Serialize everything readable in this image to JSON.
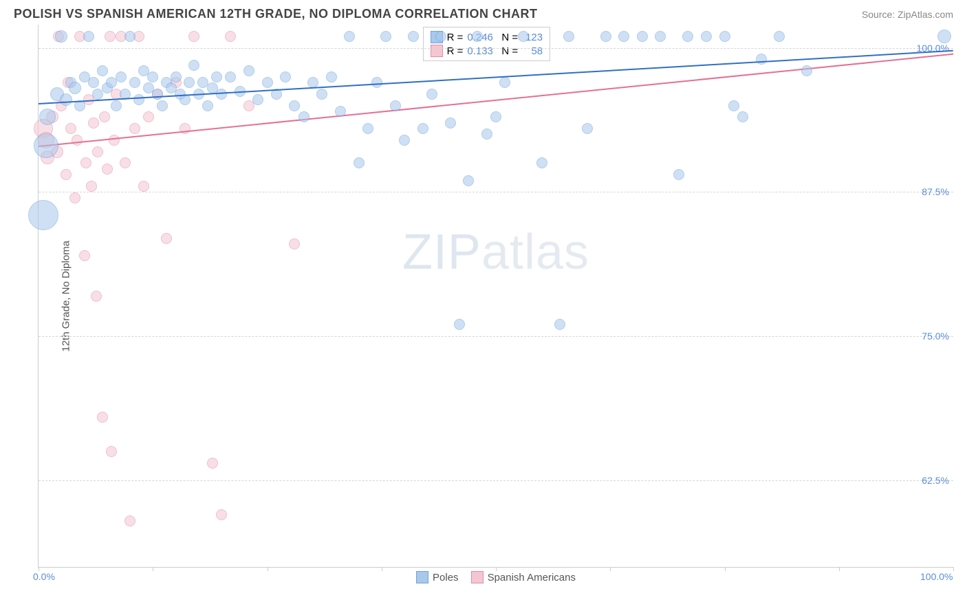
{
  "title": "POLISH VS SPANISH AMERICAN 12TH GRADE, NO DIPLOMA CORRELATION CHART",
  "source_label": "Source: ZipAtlas.com",
  "y_axis_label": "12th Grade, No Diploma",
  "watermark": "ZIPatlas",
  "chart": {
    "type": "scatter",
    "xlim": [
      0,
      100
    ],
    "ylim": [
      55,
      102
    ],
    "y_ticks": [
      {
        "v": 62.5,
        "label": "62.5%"
      },
      {
        "v": 75.0,
        "label": "75.0%"
      },
      {
        "v": 87.5,
        "label": "87.5%"
      },
      {
        "v": 100.0,
        "label": "100.0%"
      }
    ],
    "x_tick_positions": [
      0,
      12.5,
      25,
      37.5,
      50,
      62.5,
      75,
      87.5,
      100
    ],
    "x_labels": [
      {
        "v": 0,
        "label": "0.0%"
      },
      {
        "v": 100,
        "label": "100.0%"
      }
    ],
    "background_color": "#ffffff",
    "grid_color": "#d5d5d5",
    "series": {
      "poles": {
        "label": "Poles",
        "fill": "#a9c8ec",
        "stroke": "#6fa3dd",
        "fill_opacity": 0.55,
        "trend": {
          "color": "#2f6fc4",
          "y_at_x0": 95.2,
          "y_at_x100": 99.8,
          "width": 2
        },
        "stats": {
          "R_label": "R =",
          "R": "0.246",
          "N_label": "N =",
          "N": "123"
        },
        "points": [
          {
            "x": 0.5,
            "y": 85.5,
            "r": 22
          },
          {
            "x": 0.8,
            "y": 91.5,
            "r": 18
          },
          {
            "x": 1,
            "y": 94,
            "r": 12
          },
          {
            "x": 2,
            "y": 96,
            "r": 10
          },
          {
            "x": 2.5,
            "y": 101,
            "r": 9
          },
          {
            "x": 3,
            "y": 95.5,
            "r": 9
          },
          {
            "x": 3.5,
            "y": 97,
            "r": 8
          },
          {
            "x": 4,
            "y": 96.5,
            "r": 9
          },
          {
            "x": 4.5,
            "y": 95,
            "r": 8
          },
          {
            "x": 5,
            "y": 97.5,
            "r": 8
          },
          {
            "x": 5.5,
            "y": 101,
            "r": 8
          },
          {
            "x": 6,
            "y": 97,
            "r": 8
          },
          {
            "x": 6.5,
            "y": 96,
            "r": 8
          },
          {
            "x": 7,
            "y": 98,
            "r": 8
          },
          {
            "x": 7.5,
            "y": 96.5,
            "r": 8
          },
          {
            "x": 8,
            "y": 97,
            "r": 8
          },
          {
            "x": 8.5,
            "y": 95,
            "r": 8
          },
          {
            "x": 9,
            "y": 97.5,
            "r": 8
          },
          {
            "x": 9.5,
            "y": 96,
            "r": 8
          },
          {
            "x": 10,
            "y": 101,
            "r": 8
          },
          {
            "x": 10.5,
            "y": 97,
            "r": 8
          },
          {
            "x": 11,
            "y": 95.5,
            "r": 8
          },
          {
            "x": 11.5,
            "y": 98,
            "r": 8
          },
          {
            "x": 12,
            "y": 96.5,
            "r": 8
          },
          {
            "x": 12.5,
            "y": 97.5,
            "r": 8
          },
          {
            "x": 13,
            "y": 96,
            "r": 8
          },
          {
            "x": 13.5,
            "y": 95,
            "r": 8
          },
          {
            "x": 14,
            "y": 97,
            "r": 8
          },
          {
            "x": 14.5,
            "y": 96.5,
            "r": 8
          },
          {
            "x": 15,
            "y": 97.5,
            "r": 8
          },
          {
            "x": 15.5,
            "y": 96,
            "r": 8
          },
          {
            "x": 16,
            "y": 95.5,
            "r": 8
          },
          {
            "x": 16.5,
            "y": 97,
            "r": 8
          },
          {
            "x": 17,
            "y": 98.5,
            "r": 8
          },
          {
            "x": 17.5,
            "y": 96,
            "r": 8
          },
          {
            "x": 18,
            "y": 97,
            "r": 8
          },
          {
            "x": 18.5,
            "y": 95,
            "r": 8
          },
          {
            "x": 19,
            "y": 96.5,
            "r": 8
          },
          {
            "x": 19.5,
            "y": 97.5,
            "r": 8
          },
          {
            "x": 20,
            "y": 96,
            "r": 8
          },
          {
            "x": 21,
            "y": 97.5,
            "r": 8
          },
          {
            "x": 22,
            "y": 96.2,
            "r": 8
          },
          {
            "x": 23,
            "y": 98,
            "r": 8
          },
          {
            "x": 24,
            "y": 95.5,
            "r": 8
          },
          {
            "x": 25,
            "y": 97,
            "r": 8
          },
          {
            "x": 26,
            "y": 96,
            "r": 8
          },
          {
            "x": 27,
            "y": 97.5,
            "r": 8
          },
          {
            "x": 28,
            "y": 95,
            "r": 8
          },
          {
            "x": 29,
            "y": 94,
            "r": 8
          },
          {
            "x": 30,
            "y": 97,
            "r": 8
          },
          {
            "x": 31,
            "y": 96,
            "r": 8
          },
          {
            "x": 32,
            "y": 97.5,
            "r": 8
          },
          {
            "x": 33,
            "y": 94.5,
            "r": 8
          },
          {
            "x": 34,
            "y": 101,
            "r": 8
          },
          {
            "x": 35,
            "y": 90,
            "r": 8
          },
          {
            "x": 36,
            "y": 93,
            "r": 8
          },
          {
            "x": 37,
            "y": 97,
            "r": 8
          },
          {
            "x": 38,
            "y": 101,
            "r": 8
          },
          {
            "x": 39,
            "y": 95,
            "r": 8
          },
          {
            "x": 40,
            "y": 92,
            "r": 8
          },
          {
            "x": 41,
            "y": 101,
            "r": 8
          },
          {
            "x": 42,
            "y": 93,
            "r": 8
          },
          {
            "x": 43,
            "y": 96,
            "r": 8
          },
          {
            "x": 44,
            "y": 101,
            "r": 8
          },
          {
            "x": 45,
            "y": 93.5,
            "r": 8
          },
          {
            "x": 46,
            "y": 76,
            "r": 8
          },
          {
            "x": 47,
            "y": 88.5,
            "r": 8
          },
          {
            "x": 48,
            "y": 101,
            "r": 8
          },
          {
            "x": 49,
            "y": 92.5,
            "r": 8
          },
          {
            "x": 50,
            "y": 94,
            "r": 8
          },
          {
            "x": 51,
            "y": 97,
            "r": 8
          },
          {
            "x": 53,
            "y": 101,
            "r": 8
          },
          {
            "x": 55,
            "y": 90,
            "r": 8
          },
          {
            "x": 57,
            "y": 76,
            "r": 8
          },
          {
            "x": 58,
            "y": 101,
            "r": 8
          },
          {
            "x": 60,
            "y": 93,
            "r": 8
          },
          {
            "x": 62,
            "y": 101,
            "r": 8
          },
          {
            "x": 64,
            "y": 101,
            "r": 8
          },
          {
            "x": 66,
            "y": 101,
            "r": 8
          },
          {
            "x": 68,
            "y": 101,
            "r": 8
          },
          {
            "x": 70,
            "y": 89,
            "r": 8
          },
          {
            "x": 71,
            "y": 101,
            "r": 8
          },
          {
            "x": 73,
            "y": 101,
            "r": 8
          },
          {
            "x": 75,
            "y": 101,
            "r": 8
          },
          {
            "x": 76,
            "y": 95,
            "r": 8
          },
          {
            "x": 77,
            "y": 94,
            "r": 8
          },
          {
            "x": 79,
            "y": 99,
            "r": 8
          },
          {
            "x": 81,
            "y": 101,
            "r": 8
          },
          {
            "x": 84,
            "y": 98,
            "r": 8
          },
          {
            "x": 99,
            "y": 101,
            "r": 10
          }
        ]
      },
      "spanish": {
        "label": "Spanish Americans",
        "fill": "#f4c6d2",
        "stroke": "#e38ba5",
        "fill_opacity": 0.55,
        "trend": {
          "color": "#e56f94",
          "y_at_x0": 91.5,
          "y_at_x100": 99.5,
          "width": 2
        },
        "stats": {
          "R_label": "R =",
          "R": "0.133",
          "N_label": "N =",
          "N": "58"
        },
        "points": [
          {
            "x": 0.5,
            "y": 93,
            "r": 14
          },
          {
            "x": 0.8,
            "y": 92,
            "r": 12
          },
          {
            "x": 1,
            "y": 90.5,
            "r": 10
          },
          {
            "x": 1.5,
            "y": 94,
            "r": 9
          },
          {
            "x": 2,
            "y": 91,
            "r": 9
          },
          {
            "x": 2.2,
            "y": 101,
            "r": 8
          },
          {
            "x": 2.5,
            "y": 95,
            "r": 8
          },
          {
            "x": 3,
            "y": 89,
            "r": 8
          },
          {
            "x": 3.2,
            "y": 97,
            "r": 8
          },
          {
            "x": 3.5,
            "y": 93,
            "r": 8
          },
          {
            "x": 4,
            "y": 87,
            "r": 8
          },
          {
            "x": 4.2,
            "y": 92,
            "r": 8
          },
          {
            "x": 4.5,
            "y": 101,
            "r": 8
          },
          {
            "x": 5,
            "y": 82,
            "r": 8
          },
          {
            "x": 5.2,
            "y": 90,
            "r": 8
          },
          {
            "x": 5.5,
            "y": 95.5,
            "r": 8
          },
          {
            "x": 5.8,
            "y": 88,
            "r": 8
          },
          {
            "x": 6,
            "y": 93.5,
            "r": 8
          },
          {
            "x": 6.3,
            "y": 78.5,
            "r": 8
          },
          {
            "x": 6.5,
            "y": 91,
            "r": 8
          },
          {
            "x": 7,
            "y": 68,
            "r": 8
          },
          {
            "x": 7.2,
            "y": 94,
            "r": 8
          },
          {
            "x": 7.5,
            "y": 89.5,
            "r": 8
          },
          {
            "x": 7.8,
            "y": 101,
            "r": 8
          },
          {
            "x": 8,
            "y": 65,
            "r": 8
          },
          {
            "x": 8.3,
            "y": 92,
            "r": 8
          },
          {
            "x": 8.5,
            "y": 96,
            "r": 8
          },
          {
            "x": 9,
            "y": 101,
            "r": 8
          },
          {
            "x": 9.5,
            "y": 90,
            "r": 8
          },
          {
            "x": 10,
            "y": 59,
            "r": 8
          },
          {
            "x": 10.5,
            "y": 93,
            "r": 8
          },
          {
            "x": 11,
            "y": 101,
            "r": 8
          },
          {
            "x": 11.5,
            "y": 88,
            "r": 8
          },
          {
            "x": 12,
            "y": 94,
            "r": 8
          },
          {
            "x": 13,
            "y": 96,
            "r": 8
          },
          {
            "x": 14,
            "y": 83.5,
            "r": 8
          },
          {
            "x": 15,
            "y": 97,
            "r": 8
          },
          {
            "x": 16,
            "y": 93,
            "r": 8
          },
          {
            "x": 17,
            "y": 101,
            "r": 8
          },
          {
            "x": 19,
            "y": 64,
            "r": 8
          },
          {
            "x": 20,
            "y": 59.5,
            "r": 8
          },
          {
            "x": 21,
            "y": 101,
            "r": 8
          },
          {
            "x": 23,
            "y": 95,
            "r": 8
          },
          {
            "x": 28,
            "y": 83,
            "r": 8
          }
        ]
      }
    }
  }
}
